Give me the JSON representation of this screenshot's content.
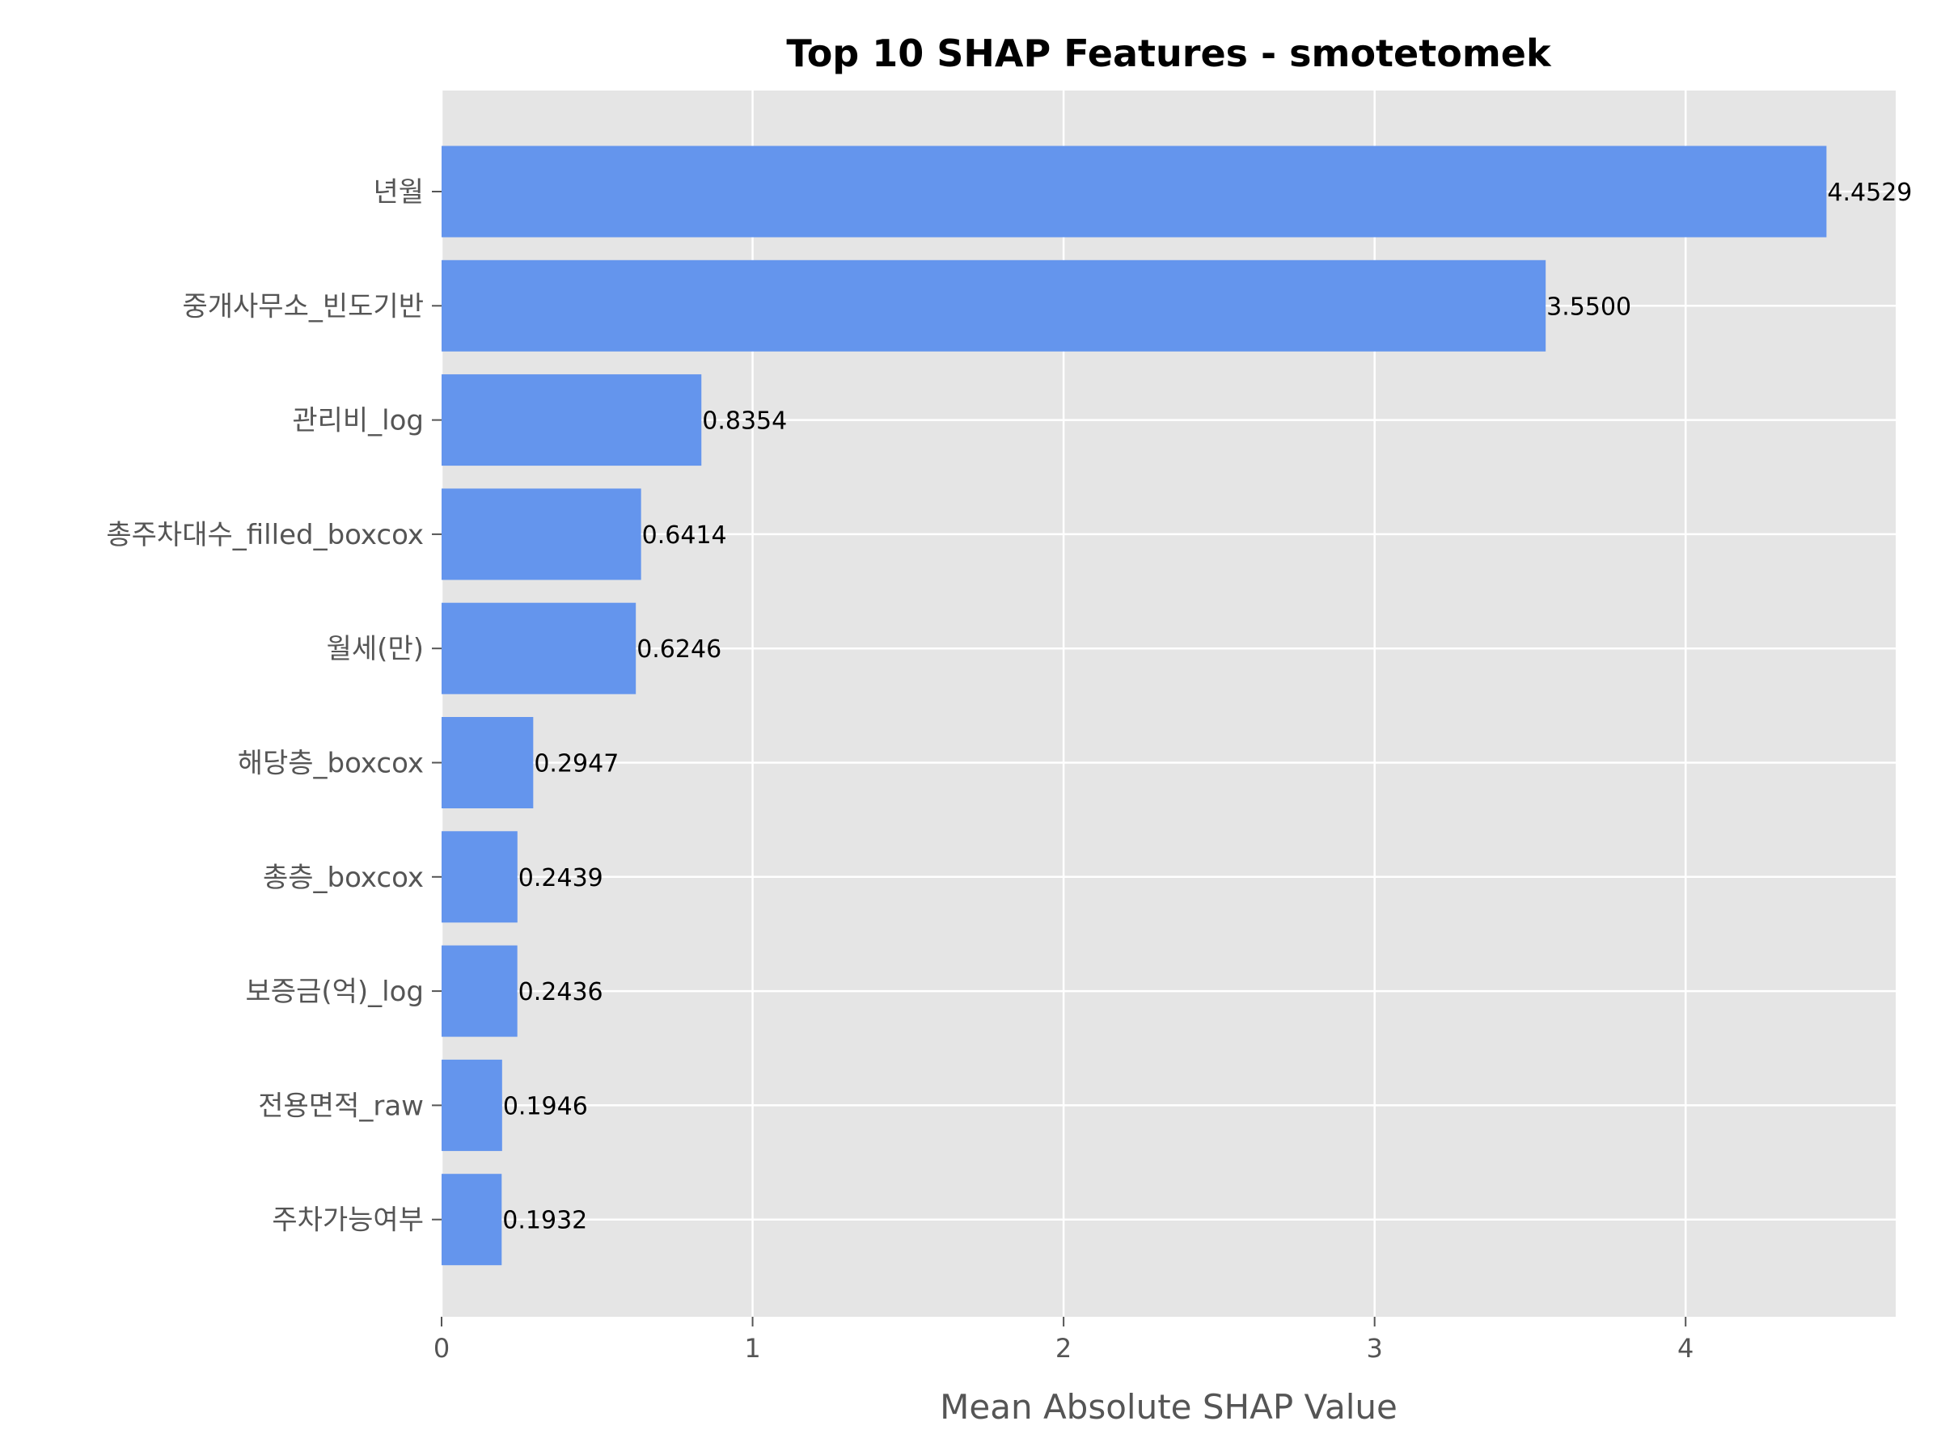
{
  "chart_data": {
    "type": "bar",
    "orientation": "horizontal",
    "title": "Top 10 SHAP Features - smotetomek",
    "xlabel": "Mean Absolute SHAP Value",
    "ylabel": "",
    "categories": [
      "년월",
      "중개사무소_빈도기반",
      "관리비_log",
      "총주차대수_filled_boxcox",
      "월세(만)",
      "해당층_boxcox",
      "총층_boxcox",
      "보증금(억)_log",
      "전용면적_raw",
      "주차가능여부"
    ],
    "values": [
      4.4529,
      3.55,
      0.8354,
      0.6414,
      0.6246,
      0.2947,
      0.2439,
      0.2436,
      0.1946,
      0.1932
    ],
    "value_labels": [
      "4.4529",
      "3.5500",
      "0.8354",
      "0.6414",
      "0.6246",
      "0.2947",
      "0.2439",
      "0.2436",
      "0.1946",
      "0.1932"
    ],
    "xlim": [
      0,
      4.6755
    ],
    "xticks": [
      0,
      1,
      2,
      3,
      4
    ],
    "xtick_labels": [
      "0",
      "1",
      "2",
      "3",
      "4"
    ],
    "grid": true,
    "colors": {
      "bar": "#6495ED",
      "plot_bg": "#E5E5E5",
      "grid": "#FFFFFF"
    }
  }
}
